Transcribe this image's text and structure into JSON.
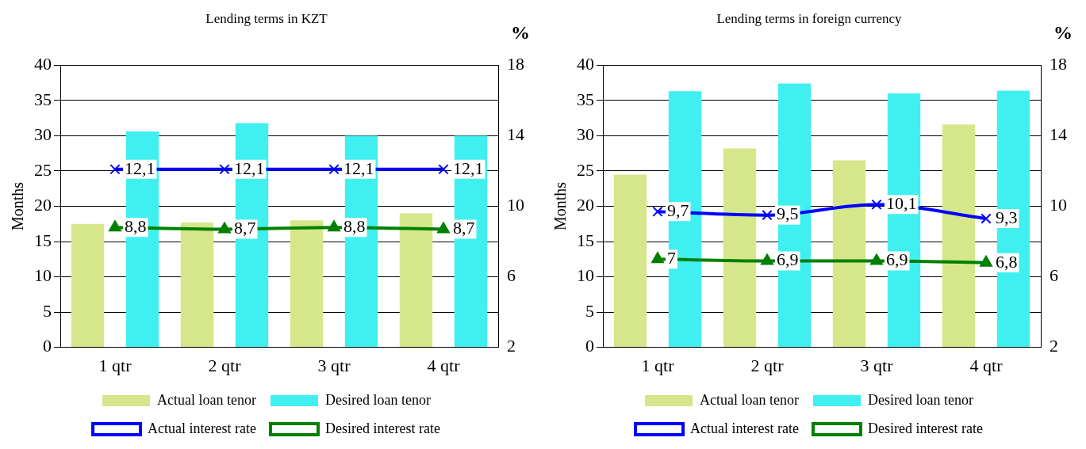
{
  "chart_data": [
    {
      "type": "bar",
      "title": "Lending terms in KZT",
      "ylabel": "Months",
      "y2label": "%",
      "categories": [
        "1 qtr",
        "2 qtr",
        "3 qtr",
        "4 qtr"
      ],
      "series": [
        {
          "name": "Actual loan tenor",
          "color": "#d6e68a",
          "values": [
            17.5,
            17.7,
            18,
            19
          ]
        },
        {
          "name": "Desired loan tenor",
          "color": "#40f0f0",
          "values": [
            30.6,
            31.8,
            30,
            30
          ]
        },
        {
          "name": "Actual interest rate",
          "type": "line",
          "axis": "y2",
          "marker": "cross",
          "color": "#0000ff",
          "values": [
            12.1,
            12.1,
            12.1,
            12.1
          ],
          "value_labels": [
            "12,1",
            "12,1",
            "12,1",
            "12,1"
          ]
        },
        {
          "name": "Desired interest rate",
          "type": "line",
          "axis": "y2",
          "marker": "triangle",
          "color": "#008000",
          "values": [
            8.8,
            8.7,
            8.8,
            8.7
          ],
          "value_labels": [
            "8,8",
            "8,7",
            "8,8",
            "8,7"
          ]
        }
      ],
      "ylim": [
        0,
        40
      ],
      "yticks": [
        0,
        5,
        10,
        15,
        20,
        25,
        30,
        35,
        40
      ],
      "y2lim": [
        2,
        18
      ],
      "y2ticks": [
        2,
        6,
        10,
        14,
        18
      ],
      "grid": "y",
      "legend": "bottom"
    },
    {
      "type": "bar",
      "title": "Lending terms in foreign currency",
      "ylabel": "Months",
      "y2label": "%",
      "categories": [
        "1 qtr",
        "2 qtr",
        "3 qtr",
        "4 qtr"
      ],
      "series": [
        {
          "name": "Actual loan tenor",
          "color": "#d6e68a",
          "values": [
            24.5,
            28.2,
            26.5,
            31.6
          ]
        },
        {
          "name": "Desired loan tenor",
          "color": "#40f0f0",
          "values": [
            36.3,
            37.4,
            36,
            36.4
          ]
        },
        {
          "name": "Actual interest rate",
          "type": "line",
          "axis": "y2",
          "marker": "cross",
          "color": "#0000ff",
          "values": [
            9.7,
            9.5,
            10.1,
            9.3
          ],
          "value_labels": [
            "9,7",
            "9,5",
            "10,1",
            "9,3"
          ]
        },
        {
          "name": "Desired interest rate",
          "type": "line",
          "axis": "y2",
          "marker": "triangle",
          "color": "#008000",
          "values": [
            7,
            6.9,
            6.9,
            6.8
          ],
          "value_labels": [
            "7",
            "6,9",
            "6,9",
            "6,8"
          ]
        }
      ],
      "ylim": [
        0,
        40
      ],
      "yticks": [
        0,
        5,
        10,
        15,
        20,
        25,
        30,
        35,
        40
      ],
      "y2lim": [
        2,
        18
      ],
      "y2ticks": [
        2,
        6,
        10,
        14,
        18
      ],
      "grid": "y",
      "legend": "bottom"
    }
  ]
}
